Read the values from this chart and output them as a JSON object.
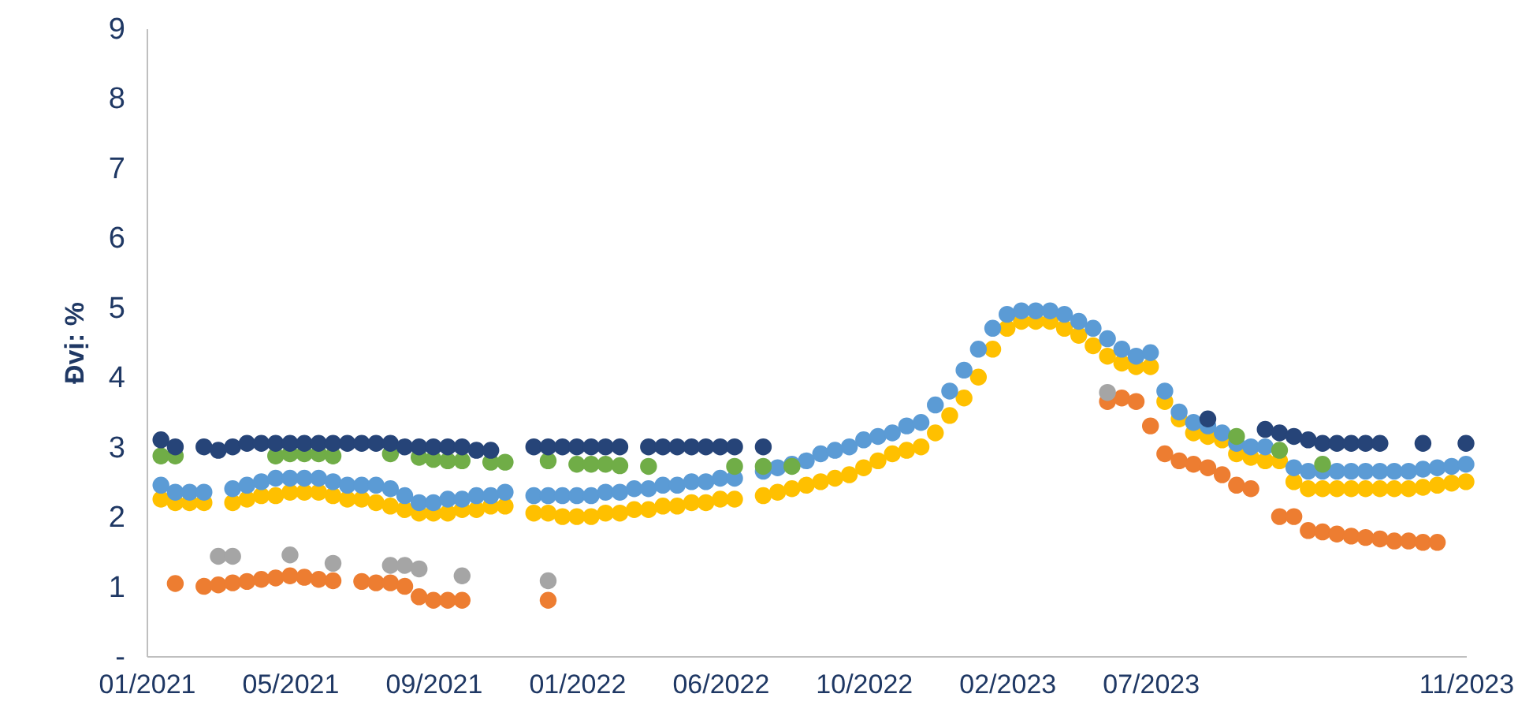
{
  "chart_data": {
    "type": "scatter",
    "ylabel": "Đvị: %",
    "marker": "circle",
    "categories": [
      "01/2021",
      null,
      null,
      null,
      null,
      null,
      null,
      null,
      null,
      null,
      "05/2021",
      null,
      null,
      null,
      null,
      null,
      null,
      null,
      null,
      null,
      "09/2021",
      null,
      null,
      null,
      null,
      null,
      null,
      null,
      null,
      null,
      "01/2022",
      null,
      null,
      null,
      null,
      null,
      null,
      null,
      null,
      null,
      "06/2022",
      null,
      null,
      null,
      null,
      null,
      null,
      null,
      null,
      null,
      "10/2022",
      null,
      null,
      null,
      null,
      null,
      null,
      null,
      null,
      null,
      "02/2023",
      null,
      null,
      null,
      null,
      null,
      null,
      null,
      null,
      null,
      "07/2023",
      null,
      null,
      null,
      null,
      null,
      null,
      null,
      null,
      null,
      null,
      null,
      null,
      null,
      null,
      null,
      null,
      null,
      null,
      null,
      null,
      null,
      "11/2023"
    ],
    "ylim": [
      0,
      9
    ],
    "yticks": [
      {
        "value": 0,
        "label": "-"
      },
      1,
      2,
      3,
      4,
      5,
      6,
      7,
      8,
      9
    ],
    "series": [
      {
        "color": "#ffc000",
        "values": [
          null,
          2.25,
          2.2,
          2.2,
          2.2,
          null,
          2.2,
          2.25,
          2.3,
          2.3,
          2.35,
          2.35,
          2.35,
          2.3,
          2.25,
          2.25,
          2.2,
          2.15,
          2.1,
          2.05,
          2.05,
          2.05,
          2.1,
          2.1,
          2.15,
          2.15,
          null,
          2.05,
          2.05,
          2.0,
          2.0,
          2.0,
          2.05,
          2.05,
          2.1,
          2.1,
          2.15,
          2.15,
          2.2,
          2.2,
          2.25,
          2.25,
          null,
          2.3,
          2.35,
          2.4,
          2.45,
          2.5,
          2.55,
          2.6,
          2.7,
          2.8,
          2.9,
          2.95,
          3.0,
          3.2,
          3.45,
          3.7,
          4.0,
          4.4,
          4.7,
          4.8,
          4.8,
          4.8,
          4.7,
          4.6,
          4.45,
          4.3,
          4.2,
          4.15,
          4.15,
          3.65,
          3.4,
          3.2,
          3.15,
          3.1,
          2.9,
          2.85,
          2.8,
          2.8,
          2.5,
          2.4,
          2.4,
          2.4,
          2.4,
          2.4,
          2.4,
          2.4,
          2.4,
          2.42,
          2.45,
          2.48,
          2.5
        ]
      },
      {
        "color": "#5b9bd5",
        "values": [
          null,
          2.45,
          2.35,
          2.35,
          2.35,
          null,
          2.4,
          2.45,
          2.5,
          2.55,
          2.55,
          2.55,
          2.55,
          2.5,
          2.45,
          2.45,
          2.45,
          2.4,
          2.3,
          2.2,
          2.2,
          2.25,
          2.25,
          2.3,
          2.3,
          2.35,
          null,
          2.3,
          2.3,
          2.3,
          2.3,
          2.3,
          2.35,
          2.35,
          2.4,
          2.4,
          2.45,
          2.45,
          2.5,
          2.5,
          2.55,
          2.55,
          null,
          2.65,
          2.7,
          2.75,
          2.8,
          2.9,
          2.95,
          3.0,
          3.1,
          3.15,
          3.2,
          3.3,
          3.35,
          3.6,
          3.8,
          4.1,
          4.4,
          4.7,
          4.9,
          4.95,
          4.95,
          4.95,
          4.9,
          4.8,
          4.7,
          4.55,
          4.4,
          4.3,
          4.35,
          3.8,
          3.5,
          3.35,
          3.3,
          3.2,
          3.05,
          3.0,
          3.0,
          null,
          2.7,
          2.65,
          2.65,
          2.65,
          2.65,
          2.65,
          2.65,
          2.65,
          2.65,
          2.68,
          2.7,
          2.72,
          2.75
        ]
      },
      {
        "color": "#ed7d31",
        "values": [
          null,
          null,
          1.04,
          null,
          1.0,
          1.02,
          1.05,
          1.07,
          1.1,
          1.12,
          1.15,
          1.13,
          1.1,
          1.08,
          null,
          1.07,
          1.05,
          1.05,
          1.0,
          0.85,
          0.8,
          0.8,
          0.8,
          null,
          null,
          null,
          null,
          null,
          0.8,
          null,
          null,
          null,
          null,
          null,
          null,
          null,
          null,
          null,
          null,
          null,
          null,
          null,
          null,
          null,
          null,
          null,
          null,
          null,
          null,
          null,
          null,
          null,
          null,
          null,
          null,
          null,
          null,
          null,
          null,
          null,
          null,
          null,
          null,
          null,
          null,
          null,
          null,
          3.65,
          3.7,
          3.65,
          3.3,
          2.9,
          2.8,
          2.75,
          2.7,
          2.6,
          2.45,
          2.4,
          null,
          2.0,
          2.0,
          1.8,
          1.78,
          1.75,
          1.72,
          1.7,
          1.68,
          1.65,
          1.65,
          1.63,
          1.63,
          null,
          null
        ]
      },
      {
        "color": "#a5a5a5",
        "values": [
          null,
          null,
          null,
          null,
          null,
          1.43,
          1.43,
          null,
          null,
          null,
          1.45,
          null,
          null,
          1.33,
          null,
          null,
          null,
          1.3,
          1.3,
          1.25,
          null,
          null,
          1.15,
          null,
          null,
          null,
          null,
          null,
          1.08,
          null,
          null,
          null,
          null,
          null,
          null,
          null,
          null,
          null,
          null,
          null,
          null,
          null,
          null,
          null,
          null,
          null,
          null,
          null,
          null,
          null,
          null,
          null,
          null,
          null,
          null,
          null,
          null,
          null,
          null,
          null,
          null,
          null,
          null,
          null,
          null,
          null,
          null,
          3.78,
          null,
          null,
          null,
          null,
          null,
          null,
          null,
          null,
          null,
          null,
          null,
          null,
          null,
          null,
          null,
          null,
          null,
          null,
          null,
          null,
          null,
          null,
          null,
          null,
          null
        ]
      },
      {
        "color": "#70ad47",
        "values": [
          null,
          2.87,
          2.87,
          null,
          null,
          null,
          null,
          null,
          null,
          2.87,
          2.9,
          2.9,
          2.9,
          2.87,
          null,
          null,
          null,
          2.9,
          null,
          2.85,
          2.82,
          2.8,
          2.8,
          null,
          2.78,
          2.78,
          null,
          null,
          2.8,
          null,
          2.75,
          2.75,
          2.75,
          2.73,
          null,
          2.72,
          null,
          null,
          null,
          null,
          null,
          2.72,
          null,
          2.72,
          null,
          2.72,
          null,
          null,
          null,
          null,
          null,
          null,
          null,
          null,
          null,
          null,
          null,
          null,
          null,
          null,
          null,
          null,
          null,
          null,
          null,
          null,
          null,
          null,
          null,
          null,
          null,
          null,
          null,
          null,
          null,
          null,
          3.15,
          null,
          null,
          2.95,
          null,
          null,
          2.75,
          null,
          null,
          null,
          null,
          null,
          null,
          null,
          null,
          null,
          null
        ]
      },
      {
        "color": "#264478",
        "values": [
          null,
          3.1,
          3.0,
          null,
          3.0,
          2.95,
          3.0,
          3.05,
          3.05,
          3.05,
          3.05,
          3.05,
          3.05,
          3.05,
          3.05,
          3.05,
          3.05,
          3.05,
          3.0,
          3.0,
          3.0,
          3.0,
          3.0,
          2.95,
          2.95,
          null,
          null,
          3.0,
          3.0,
          3.0,
          3.0,
          3.0,
          3.0,
          3.0,
          null,
          3.0,
          3.0,
          3.0,
          3.0,
          3.0,
          3.0,
          3.0,
          null,
          3.0,
          null,
          null,
          null,
          null,
          null,
          null,
          null,
          null,
          null,
          null,
          null,
          null,
          null,
          null,
          null,
          null,
          null,
          null,
          null,
          null,
          null,
          null,
          null,
          null,
          null,
          null,
          null,
          null,
          null,
          null,
          3.4,
          null,
          null,
          null,
          3.25,
          3.2,
          3.15,
          3.1,
          3.05,
          3.05,
          3.05,
          3.05,
          3.05,
          null,
          null,
          3.05,
          null,
          null,
          3.05
        ]
      }
    ]
  }
}
